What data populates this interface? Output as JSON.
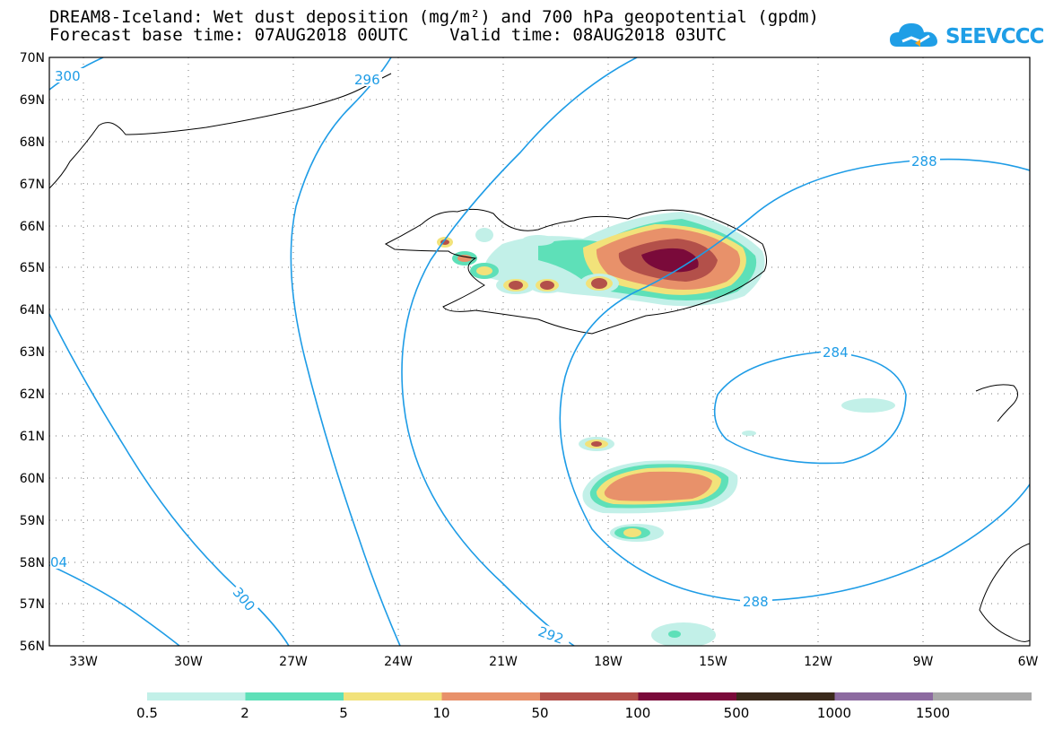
{
  "title_line1": "DREAM8-Iceland: Wet dust deposition (mg/m²) and 700 hPa geopotential (gpdm)",
  "title_line2": "Forecast base time: 07AUG2018 00UTC    Valid time: 08AUG2018 03UTC",
  "logo_text": "SEEVCCC",
  "map": {
    "region": "North Atlantic / Iceland",
    "lon_range": [
      -34.5,
      -6
    ],
    "lat_range": [
      56,
      70
    ],
    "graticule": "dotted",
    "lat_ticks": [
      "70N",
      "69N",
      "68N",
      "67N",
      "66N",
      "65N",
      "64N",
      "63N",
      "62N",
      "61N",
      "60N",
      "59N",
      "58N",
      "57N",
      "56N"
    ],
    "lon_ticks": [
      "33W",
      "30W",
      "27W",
      "24W",
      "21W",
      "18W",
      "15W",
      "12W",
      "9W",
      "6W"
    ],
    "contour_color": "#1e9ce6",
    "contour_labels": [
      "300",
      "296",
      "288",
      "284",
      "288",
      "300",
      "04",
      "292"
    ]
  },
  "colorbar": {
    "colors": [
      "#c2f0e8",
      "#5ee0b8",
      "#f2e27a",
      "#e8916a",
      "#b3504a",
      "#7a0a3a",
      "#3b2a1c",
      "#8c6aa0",
      "#a8a8a8"
    ],
    "labels": [
      "0.5",
      "2",
      "5",
      "10",
      "50",
      "100",
      "500",
      "1000",
      "1500"
    ]
  }
}
